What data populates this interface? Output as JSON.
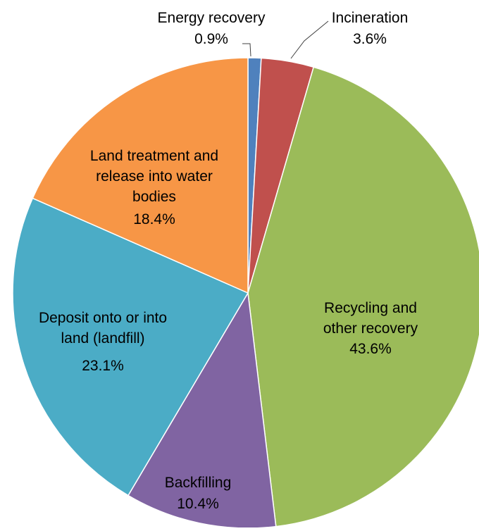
{
  "chart_data": {
    "type": "pie",
    "title": "",
    "start_angle_deg": 0,
    "direction": "clockwise",
    "slices": [
      {
        "label": "Energy recovery",
        "value": 0.9,
        "value_label": "0.9%",
        "color": "#4F81BD"
      },
      {
        "label": "Incineration",
        "value": 3.6,
        "value_label": "3.6%",
        "color": "#C0504D"
      },
      {
        "label": "Recycling and other recovery",
        "value": 43.6,
        "value_label": "43.6%",
        "color": "#9BBB59"
      },
      {
        "label": "Backfilling",
        "value": 10.4,
        "value_label": "10.4%",
        "color": "#8064A2"
      },
      {
        "label": "Deposit onto or into land (landfill)",
        "value": 23.1,
        "value_label": "23.1%",
        "color": "#4BACC6"
      },
      {
        "label": "Land treatment and release into water bodies",
        "value": 18.4,
        "value_label": "18.4%",
        "color": "#F79646"
      }
    ]
  }
}
